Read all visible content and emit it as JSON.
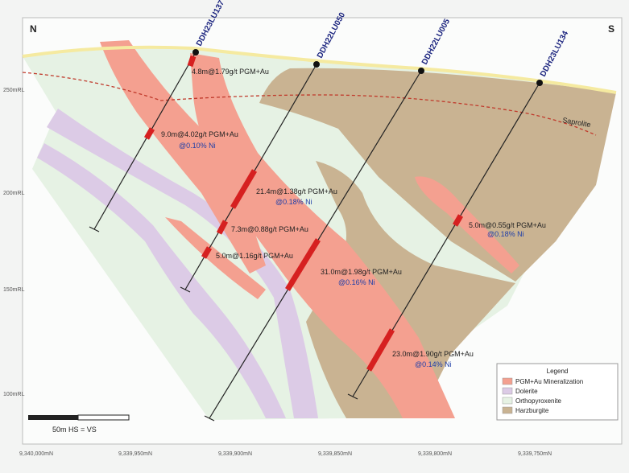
{
  "compass": {
    "north": "N",
    "south": "S"
  },
  "drill_holes": [
    {
      "label": "DDH23LU137"
    },
    {
      "label": "DDH22LU050"
    },
    {
      "label": "DDH22LU005"
    },
    {
      "label": "DDH23LU134"
    }
  ],
  "intercepts": [
    {
      "grade": "4.8m@1.79g/t PGM+Au"
    },
    {
      "grade": "9.0m@4.02g/t PGM+Au",
      "nickel": "@0.10% Ni"
    },
    {
      "grade": "21.4m@1.38g/t PGM+Au",
      "nickel": "@0.18% Ni"
    },
    {
      "grade": "7.3m@0.88g/t PGM+Au"
    },
    {
      "grade": "5.0m@1.16g/t PGM+Au"
    },
    {
      "grade": "31.0m@1.98g/t PGM+Au",
      "nickel": "@0.16% Ni"
    },
    {
      "grade": "5.0m@0.55g/t PGM+Au",
      "nickel": "@0.18% Ni"
    },
    {
      "grade": "23.0m@1.90g/t PGM+Au",
      "nickel": "@0.14% Ni"
    }
  ],
  "annotations": {
    "saprolite": "Saprolite"
  },
  "elevation_labels": [
    "250mRL",
    "200mRL",
    "150mRL",
    "100mRL"
  ],
  "northing_labels": [
    "9,340,000mN",
    "9,339,950mN",
    "9,339,900mN",
    "9,339,850mN",
    "9,339,800mN",
    "9,339,750mN"
  ],
  "legend": {
    "title": "Legend",
    "items": [
      "PGM+Au Mineralization",
      "Dolerite",
      "Orthopyroxenite",
      "Harzburgite"
    ]
  },
  "scale": {
    "label": "50m HS = VS"
  }
}
